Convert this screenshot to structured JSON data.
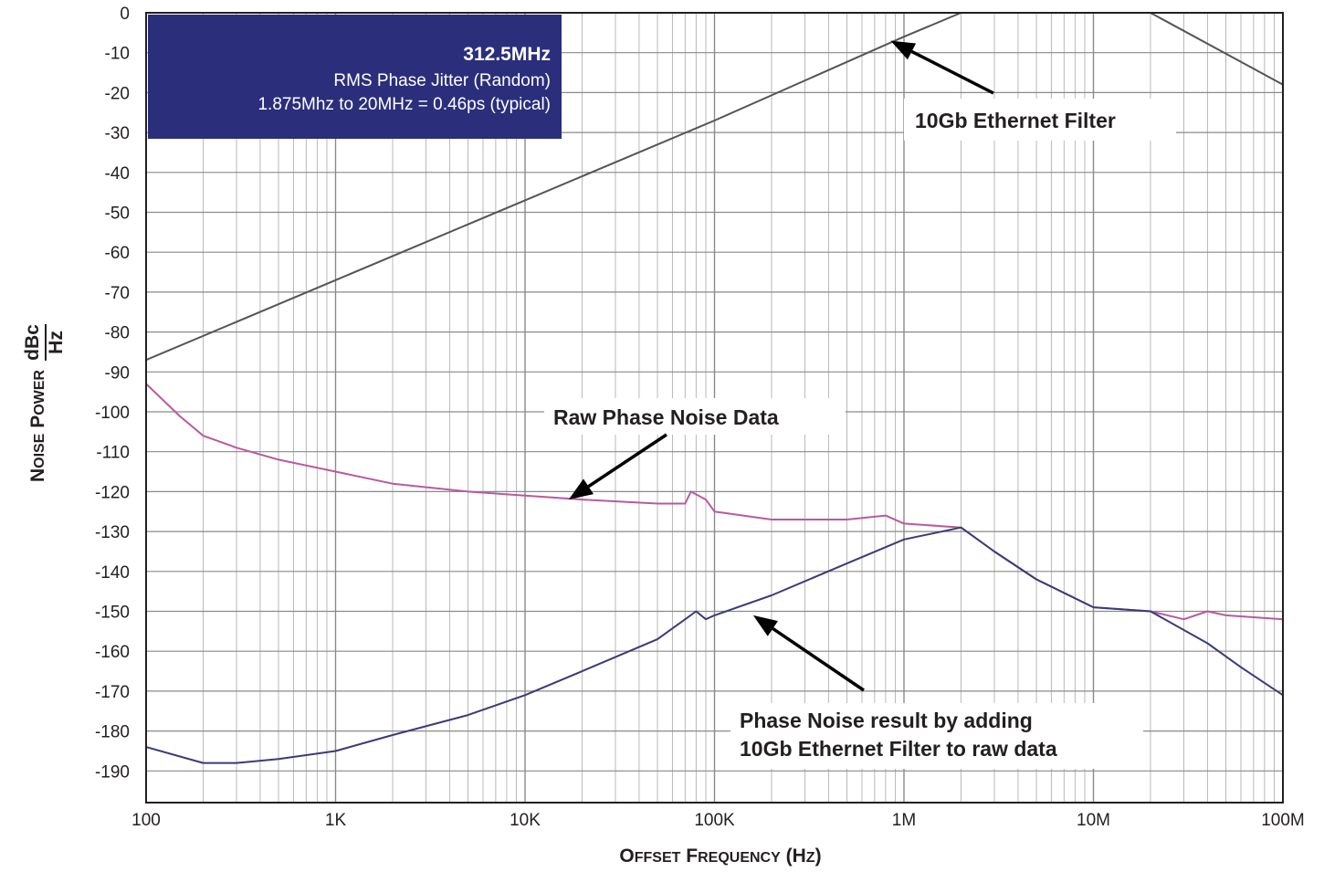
{
  "chart_data": {
    "type": "line",
    "xscale": "log",
    "xlim": [
      100,
      100000000
    ],
    "ylim": [
      -195,
      0
    ],
    "grid": true,
    "xlabel": "Offset Frequency (Hz)",
    "ylabel": "Noise Power",
    "ylabel_unit_num": "dBc",
    "ylabel_unit_den": "Hz",
    "yticks": [
      0,
      -10,
      -20,
      -30,
      -40,
      -50,
      -60,
      -70,
      -80,
      -90,
      -100,
      -110,
      -120,
      -130,
      -140,
      -150,
      -160,
      -170,
      -180,
      -190
    ],
    "yticklabels": [
      "0",
      "-10",
      "-20",
      "-30",
      "-40",
      "-50",
      "-60",
      "-70",
      "-80",
      "-90",
      "-100",
      "-110",
      "-120",
      "-130",
      "-140",
      "-150",
      "-160",
      "-170",
      "-180",
      "-190"
    ],
    "xticks": [
      100,
      1000,
      10000,
      100000,
      1000000,
      10000000,
      100000000
    ],
    "xticklabels": [
      "100",
      "1K",
      "10K",
      "100K",
      "1M",
      "10M",
      "100M"
    ],
    "infobox": {
      "title": "312.5MHz",
      "line1": "RMS Phase Jitter  (Random)",
      "line2": "1.875Mhz to 20MHz = 0.46ps (typical)",
      "color": "#2b2e7b"
    },
    "annotations": [
      {
        "text": "10Gb Ethernet Filter",
        "lines": [
          "10Gb Ethernet Filter"
        ],
        "arrow_to": [
          850000,
          -7
        ]
      },
      {
        "text": "Raw Phase Noise Data",
        "lines": [
          "Raw Phase Noise Data"
        ],
        "arrow_to": [
          17000,
          -122
        ]
      },
      {
        "text": "Phase Noise result by adding 10Gb Ethernet Filter to raw data",
        "lines": [
          "Phase Noise result by adding",
          "10Gb Ethernet Filter to raw data"
        ],
        "arrow_to": [
          160000,
          -151
        ]
      }
    ],
    "series": [
      {
        "key": "filter",
        "color": "#555555",
        "x": [
          100,
          1000,
          10000,
          100000,
          1000000,
          2000000,
          20000000,
          100000000
        ],
        "y": [
          -87,
          -67,
          -47,
          -27,
          -6,
          0,
          0,
          -18
        ]
      },
      {
        "key": "raw",
        "color": "#b85aa0",
        "x": [
          100,
          150,
          200,
          300,
          500,
          1000,
          2000,
          5000,
          10000,
          20000,
          50000,
          70000,
          75000,
          90000,
          100000,
          200000,
          500000,
          800000,
          1000000,
          2000000,
          3000000,
          5000000,
          10000000,
          20000000,
          30000000,
          40000000,
          50000000,
          100000000
        ],
        "y": [
          -93,
          -101,
          -106,
          -109,
          -112,
          -115,
          -118,
          -120,
          -121,
          -122,
          -123,
          -123,
          -120,
          -122,
          -125,
          -127,
          -127,
          -126,
          -128,
          -129,
          -135,
          -142,
          -149,
          -150,
          -152,
          -150,
          -151,
          -152
        ]
      },
      {
        "key": "filtered",
        "color": "#3b3b78",
        "x": [
          100,
          200,
          300,
          500,
          1000,
          2000,
          5000,
          10000,
          20000,
          50000,
          70000,
          80000,
          90000,
          100000,
          200000,
          500000,
          1000000,
          2000000,
          3000000,
          5000000,
          10000000,
          20000000,
          40000000,
          60000000,
          100000000
        ],
        "y": [
          -184,
          -188,
          -188,
          -187,
          -185,
          -181,
          -176,
          -171,
          -165,
          -157,
          -152,
          -150,
          -152,
          -151,
          -146,
          -138,
          -132,
          -129,
          -135,
          -142,
          -149,
          -150,
          -158,
          -164,
          -171
        ]
      }
    ]
  }
}
